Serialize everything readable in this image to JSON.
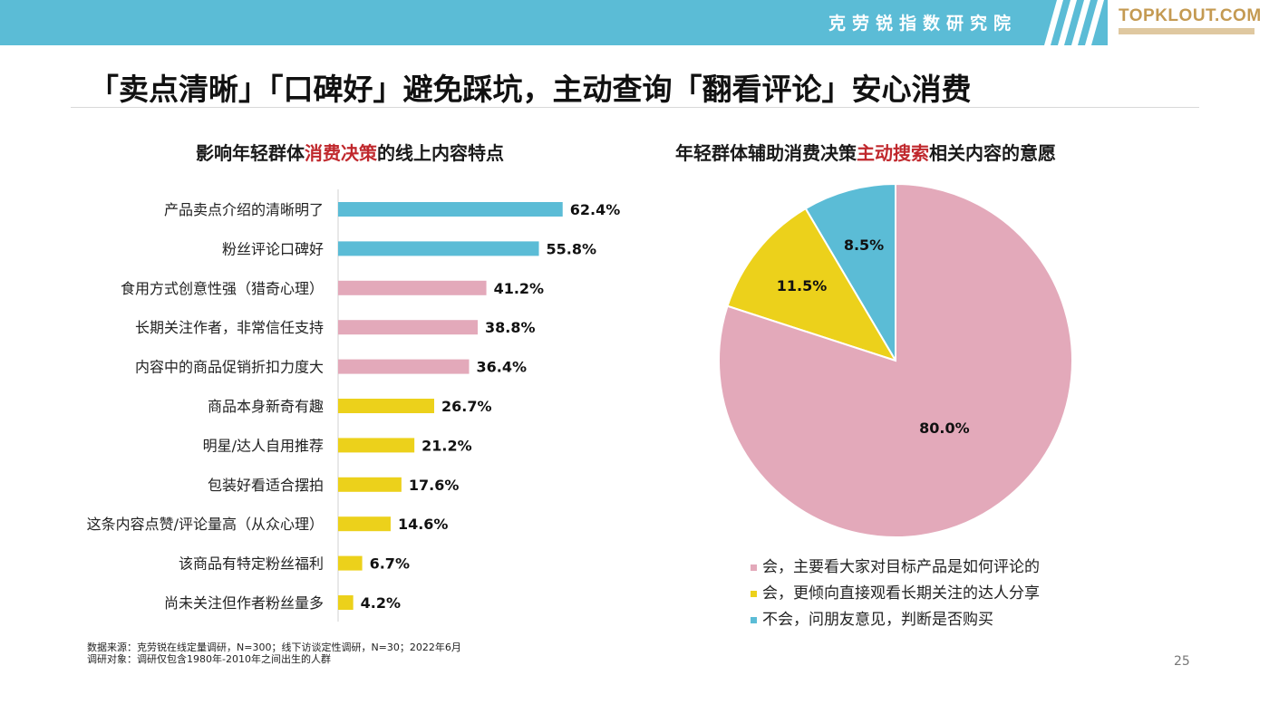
{
  "header": {
    "brand_cn": "克劳锐指数研究院",
    "logo_text": "TOPKLOUT.COM"
  },
  "headline": "「卖点清晰」「口碑好」避免踩坑，主动查询「翻看评论」安心消费",
  "left_subtitle": {
    "pre": "影响年轻群体",
    "highlight": "消费决策",
    "post": "的线上内容特点"
  },
  "right_subtitle": {
    "pre": "年轻群体辅助消费决策",
    "highlight": "主动搜索",
    "post": "相关内容的意愿"
  },
  "colors": {
    "blue": "#5bbcd6",
    "pink": "#e3a9ba",
    "yellow": "#ecd11b",
    "accent_red": "#c0282d",
    "brand_gold": "#c49a52"
  },
  "chart_data": [
    {
      "type": "bar",
      "orientation": "horizontal",
      "categories": [
        "产品卖点介绍的清晰明了",
        "粉丝评论口碑好",
        "食用方式创意性强（猎奇心理）",
        "长期关注作者，非常信任支持",
        "内容中的商品促销折扣力度大",
        "商品本身新奇有趣",
        "明星/达人自用推荐",
        "包装好看适合摆拍",
        "这条内容点赞/评论量高（从众心理）",
        "该商品有特定粉丝福利",
        "尚未关注但作者粉丝量多"
      ],
      "values": [
        62.4,
        55.8,
        41.2,
        38.8,
        36.4,
        26.7,
        21.2,
        17.6,
        14.6,
        6.7,
        4.2
      ],
      "value_labels": [
        "62.4%",
        "55.8%",
        "41.2%",
        "38.8%",
        "36.4%",
        "26.7%",
        "21.2%",
        "17.6%",
        "14.6%",
        "6.7%",
        "4.2%"
      ],
      "bar_colors": [
        "blue",
        "blue",
        "pink",
        "pink",
        "pink",
        "yellow",
        "yellow",
        "yellow",
        "yellow",
        "yellow",
        "yellow"
      ],
      "unit": "%"
    },
    {
      "type": "pie",
      "values": [
        8.5,
        11.5,
        80.0
      ],
      "value_labels": [
        "8.5%",
        "11.5%",
        "80.0%"
      ],
      "slice_colors": [
        "blue",
        "yellow",
        "pink"
      ],
      "start": "12 o'clock, counter-clockwise"
    }
  ],
  "legend": [
    {
      "label": "会，主要看大家对目标产品是如何评论的",
      "color": "pink"
    },
    {
      "label": "会，更倾向直接观看长期关注的达人分享",
      "color": "yellow"
    },
    {
      "label": "不会，问朋友意见，判断是否购买",
      "color": "blue"
    }
  ],
  "footer": {
    "source_line": "数据来源：克劳锐在线定量调研，N=300；线下访谈定性调研，N=30；2022年6月",
    "subject_line": "调研对象：调研仅包含1980年-2010年之间出生的人群",
    "page_number": "25"
  }
}
